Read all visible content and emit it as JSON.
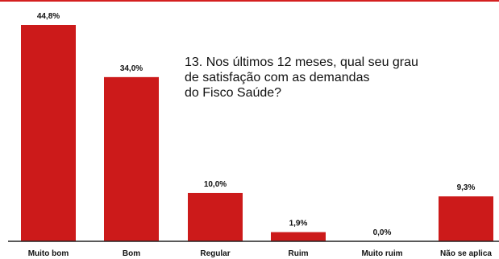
{
  "chart_data": {
    "type": "bar",
    "title_lines": [
      "13. Nos últimos 12 meses, qual seu grau",
      "de satisfação com as demandas",
      "do Fisco Saúde?"
    ],
    "categories": [
      "Muito bom",
      "Bom",
      "Regular",
      "Ruim",
      "Muito ruim",
      "Não se aplica"
    ],
    "values": [
      44.8,
      34.0,
      10.0,
      1.9,
      0.0,
      9.3
    ],
    "value_labels": [
      "44,8%",
      "34,0%",
      "10,0%",
      "1,9%",
      "0,0%",
      "9,3%"
    ],
    "ylim": [
      0,
      44.8
    ],
    "colors": {
      "bar": "#cc1a1a",
      "accent_line": "#d42020",
      "axis": "#222222"
    },
    "grid": false,
    "legend": "none"
  }
}
